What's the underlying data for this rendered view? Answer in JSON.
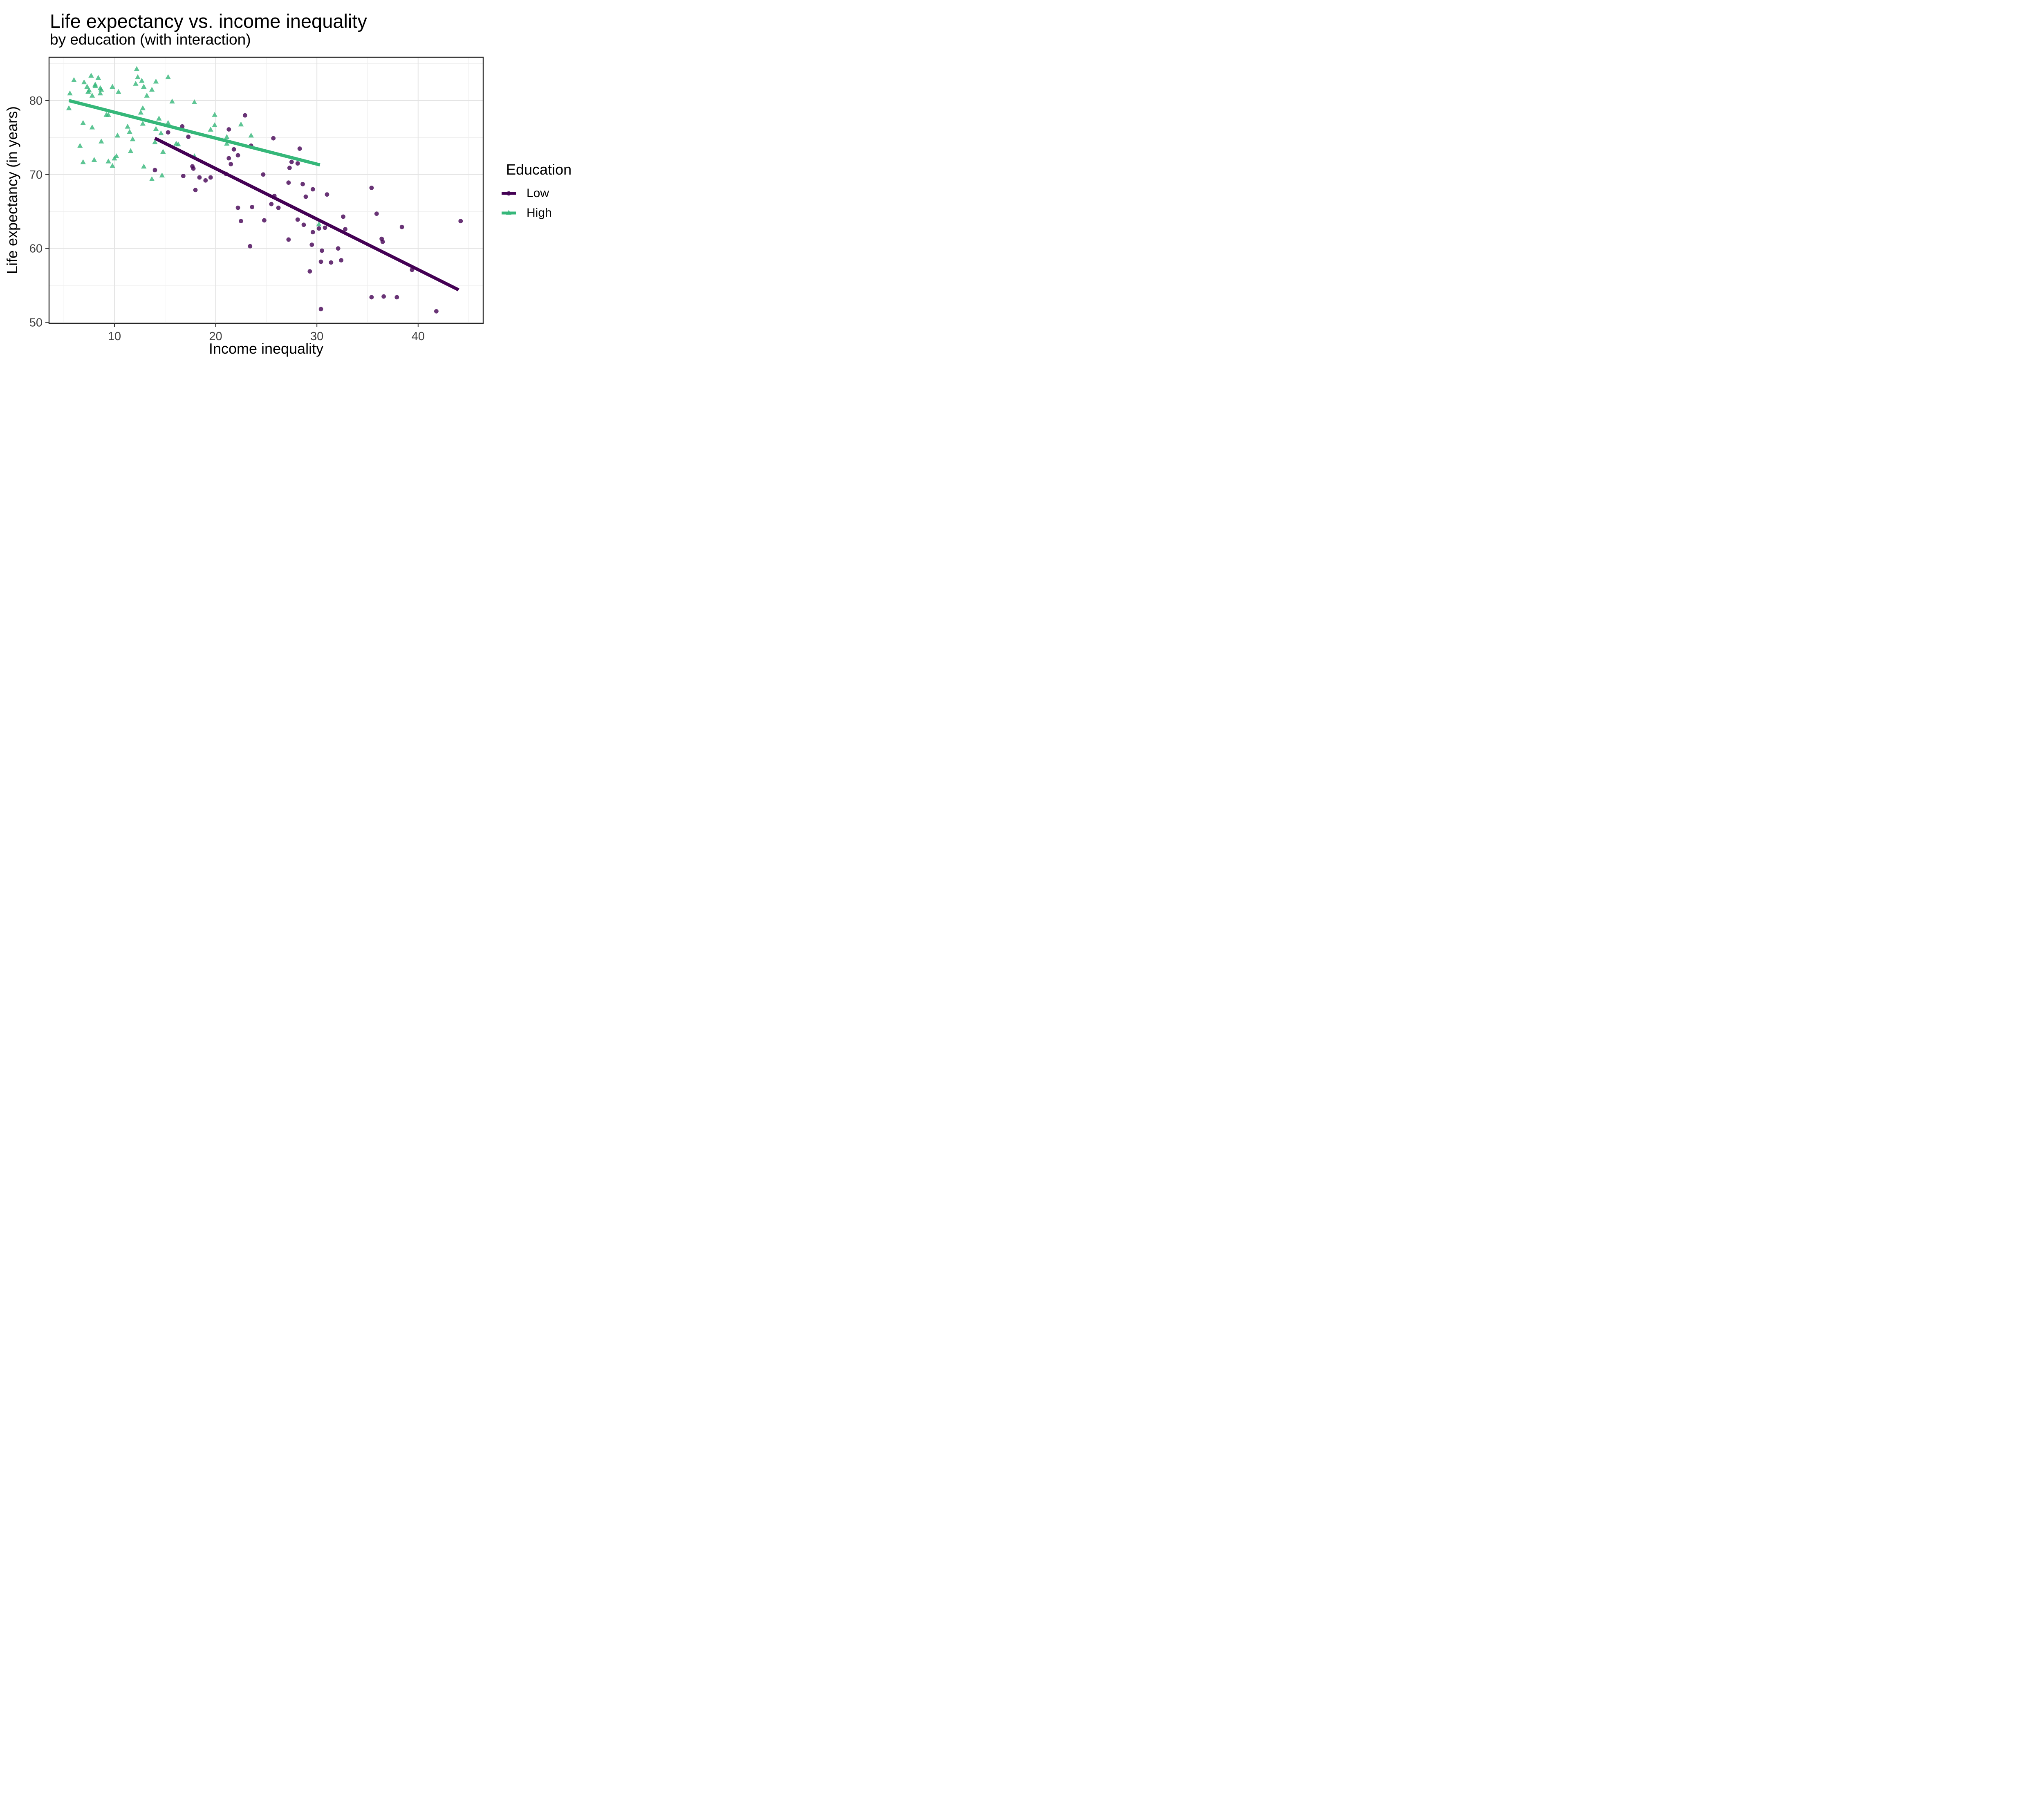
{
  "chart_data": {
    "type": "scatter",
    "title": "Life expectancy vs. income inequality",
    "subtitle": "by education (with interaction)",
    "xlabel": "Income inequality",
    "ylabel": "Life expectancy (in years)",
    "xlim": [
      3.54,
      46.43
    ],
    "ylim": [
      49.86,
      85.86
    ],
    "x_ticks": [
      10,
      20,
      30,
      40
    ],
    "y_ticks": [
      50,
      60,
      70,
      80
    ],
    "x_minor_gridlines": [
      5,
      15,
      25,
      35,
      45
    ],
    "y_minor_gridlines": [
      55,
      65,
      75,
      85
    ],
    "grid": true,
    "colors": {
      "low": "#440154",
      "high": "#35b779",
      "grid_major": "#e4e4e4",
      "grid_minor": "#efefef",
      "panel_border": "#262626",
      "tick_mark": "#333333",
      "tick_text": "#404040"
    },
    "legend": {
      "title": "Education",
      "position": "right",
      "items": [
        {
          "label": "Low",
          "marker": "circle",
          "color": "#440154"
        },
        {
          "label": "High",
          "marker": "triangle",
          "color": "#35b779"
        }
      ]
    },
    "series": [
      {
        "name": "Low",
        "marker": "circle",
        "color": "#440154",
        "opacity": 0.8,
        "points": [
          [
            16.7,
            76.5
          ],
          [
            15.3,
            75.7
          ],
          [
            17.3,
            75.1
          ],
          [
            17.7,
            71.1
          ],
          [
            17.8,
            70.8
          ],
          [
            14.0,
            70.6
          ],
          [
            16.8,
            69.8
          ],
          [
            18.4,
            69.6
          ],
          [
            18.0,
            67.9
          ],
          [
            22.9,
            78.0
          ],
          [
            21.3,
            76.1
          ],
          [
            21.8,
            73.4
          ],
          [
            22.2,
            72.6
          ],
          [
            21.3,
            72.2
          ],
          [
            21.5,
            71.4
          ],
          [
            23.5,
            73.9
          ],
          [
            25.7,
            74.9
          ],
          [
            28.3,
            73.5
          ],
          [
            27.5,
            71.7
          ],
          [
            28.1,
            71.5
          ],
          [
            27.3,
            70.9
          ],
          [
            21.0,
            70.1
          ],
          [
            24.7,
            70.0
          ],
          [
            19.5,
            69.6
          ],
          [
            19.0,
            69.2
          ],
          [
            27.2,
            68.9
          ],
          [
            28.6,
            68.7
          ],
          [
            22.2,
            65.5
          ],
          [
            23.6,
            65.6
          ],
          [
            25.5,
            66.0
          ],
          [
            26.2,
            65.5
          ],
          [
            25.8,
            67.1
          ],
          [
            29.6,
            68.0
          ],
          [
            28.9,
            67.0
          ],
          [
            31.0,
            67.3
          ],
          [
            22.5,
            63.7
          ],
          [
            24.8,
            63.8
          ],
          [
            28.1,
            63.9
          ],
          [
            28.7,
            63.2
          ],
          [
            30.2,
            62.7
          ],
          [
            30.8,
            62.8
          ],
          [
            32.8,
            62.6
          ],
          [
            32.6,
            64.3
          ],
          [
            29.6,
            62.2
          ],
          [
            29.5,
            60.5
          ],
          [
            27.2,
            61.2
          ],
          [
            23.4,
            60.3
          ],
          [
            30.5,
            59.7
          ],
          [
            32.1,
            60.0
          ],
          [
            30.4,
            58.2
          ],
          [
            31.4,
            58.1
          ],
          [
            32.4,
            58.4
          ],
          [
            29.3,
            56.9
          ],
          [
            30.4,
            51.8
          ],
          [
            35.4,
            68.2
          ],
          [
            35.9,
            64.7
          ],
          [
            38.4,
            62.9
          ],
          [
            44.2,
            63.7
          ],
          [
            36.4,
            61.3
          ],
          [
            36.5,
            60.9
          ],
          [
            39.4,
            57.1
          ],
          [
            35.4,
            53.4
          ],
          [
            36.6,
            53.5
          ],
          [
            37.9,
            53.4
          ],
          [
            41.8,
            51.5
          ]
        ]
      },
      {
        "name": "High",
        "marker": "triangle",
        "color": "#35b779",
        "opacity": 0.8,
        "points": [
          [
            6.0,
            82.8
          ],
          [
            7.0,
            82.5
          ],
          [
            7.7,
            83.4
          ],
          [
            8.4,
            83.1
          ],
          [
            7.3,
            81.9
          ],
          [
            7.5,
            81.4
          ],
          [
            8.1,
            82.2
          ],
          [
            8.1,
            82.0
          ],
          [
            8.6,
            81.7
          ],
          [
            8.7,
            81.5
          ],
          [
            8.6,
            81.0
          ],
          [
            7.8,
            80.7
          ],
          [
            7.4,
            81.2
          ],
          [
            5.6,
            81.0
          ],
          [
            9.8,
            81.9
          ],
          [
            10.4,
            81.2
          ],
          [
            12.2,
            84.3
          ],
          [
            12.3,
            83.2
          ],
          [
            12.1,
            82.3
          ],
          [
            12.7,
            82.7
          ],
          [
            12.9,
            81.9
          ],
          [
            13.7,
            81.5
          ],
          [
            13.2,
            80.7
          ],
          [
            14.1,
            82.6
          ],
          [
            15.3,
            83.2
          ],
          [
            15.7,
            79.9
          ],
          [
            17.9,
            79.8
          ],
          [
            5.5,
            79.0
          ],
          [
            9.2,
            78.1
          ],
          [
            9.4,
            78.1
          ],
          [
            12.6,
            78.4
          ],
          [
            12.8,
            79.0
          ],
          [
            14.4,
            77.6
          ],
          [
            6.9,
            77.0
          ],
          [
            7.8,
            76.4
          ],
          [
            11.3,
            76.5
          ],
          [
            11.5,
            75.8
          ],
          [
            12.8,
            76.9
          ],
          [
            14.1,
            76.2
          ],
          [
            14.6,
            75.6
          ],
          [
            15.3,
            77.0
          ],
          [
            10.3,
            75.3
          ],
          [
            11.8,
            74.8
          ],
          [
            6.6,
            73.9
          ],
          [
            8.7,
            74.5
          ],
          [
            10.2,
            72.5
          ],
          [
            11.6,
            73.2
          ],
          [
            14.0,
            74.4
          ],
          [
            16.1,
            74.2
          ],
          [
            16.3,
            74.1
          ],
          [
            14.8,
            73.1
          ],
          [
            17.9,
            72.5
          ],
          [
            6.9,
            71.7
          ],
          [
            8.0,
            72.0
          ],
          [
            9.4,
            71.8
          ],
          [
            10.0,
            72.2
          ],
          [
            9.8,
            71.2
          ],
          [
            12.9,
            71.1
          ],
          [
            14.7,
            69.9
          ],
          [
            13.7,
            69.4
          ],
          [
            19.9,
            78.1
          ],
          [
            19.9,
            76.7
          ],
          [
            19.5,
            76.1
          ],
          [
            22.5,
            76.8
          ],
          [
            21.1,
            75.1
          ],
          [
            21.1,
            74.2
          ],
          [
            23.5,
            75.3
          ],
          [
            30.2,
            63.3
          ]
        ]
      }
    ],
    "trend_lines": [
      {
        "name": "Low",
        "color": "#440154",
        "x1": 14.0,
        "y1": 74.9,
        "x2": 44.0,
        "y2": 54.4
      },
      {
        "name": "High",
        "color": "#35b779",
        "x1": 5.5,
        "y1": 80.0,
        "x2": 30.3,
        "y2": 71.3
      }
    ]
  }
}
